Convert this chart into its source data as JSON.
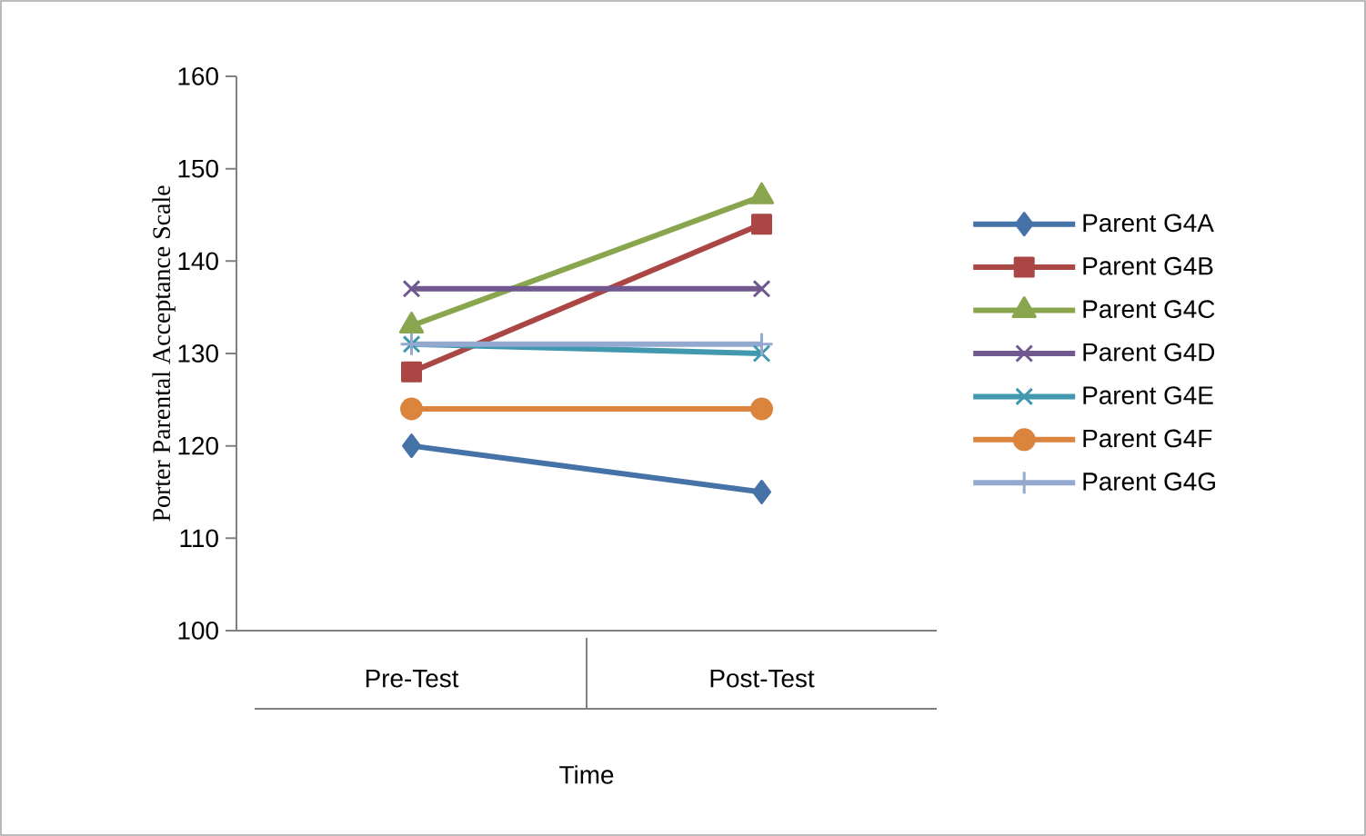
{
  "chart_data": {
    "type": "line",
    "xlabel": "Time",
    "ylabel": "Porter Parental Acceptance Scale",
    "categories": [
      "Pre-Test",
      "Post-Test"
    ],
    "series": [
      {
        "name": "Parent G4A",
        "color": "#4572a7",
        "marker": "diamond",
        "values": [
          120,
          115
        ]
      },
      {
        "name": "Parent G4B",
        "color": "#aa4643",
        "marker": "square",
        "values": [
          128,
          144
        ]
      },
      {
        "name": "Parent G4C",
        "color": "#89a54e",
        "marker": "triangle",
        "values": [
          133,
          147
        ]
      },
      {
        "name": "Parent G4D",
        "color": "#71588f",
        "marker": "cross",
        "values": [
          137,
          137
        ]
      },
      {
        "name": "Parent G4E",
        "color": "#4198af",
        "marker": "cross",
        "values": [
          131,
          130
        ]
      },
      {
        "name": "Parent G4F",
        "color": "#db843d",
        "marker": "circle",
        "values": [
          124,
          124
        ]
      },
      {
        "name": "Parent G4G",
        "color": "#93a9cf",
        "marker": "plus",
        "values": [
          131,
          131
        ]
      }
    ],
    "ylim": [
      100,
      160
    ],
    "yticks": [
      100,
      110,
      120,
      130,
      140,
      150,
      160
    ],
    "grid": false,
    "legend": "right"
  }
}
